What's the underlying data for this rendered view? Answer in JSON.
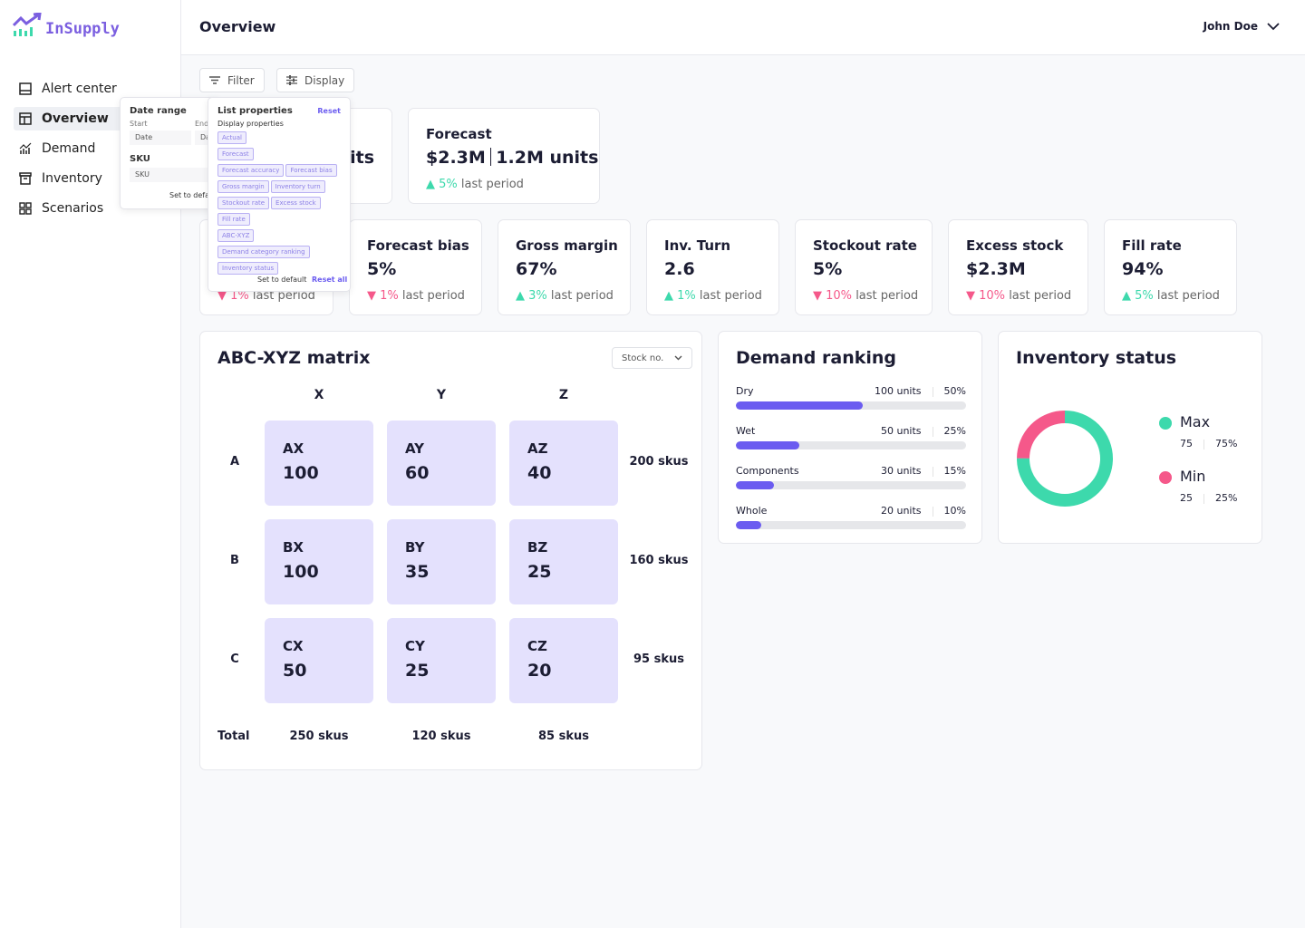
{
  "app": {
    "logo": "InSupply"
  },
  "sidebar": {
    "items": [
      {
        "label": "Alert center",
        "icon": "inbox-icon"
      },
      {
        "label": "Overview",
        "icon": "layout-icon",
        "active": true
      },
      {
        "label": "Demand",
        "icon": "chart-icon"
      },
      {
        "label": "Inventory",
        "icon": "archive-icon"
      },
      {
        "label": "Scenarios",
        "icon": "grid-icon"
      }
    ]
  },
  "header": {
    "title": "Overview",
    "user": "John Doe"
  },
  "toolbar": {
    "filter": "Filter",
    "display": "Display"
  },
  "filter_popup": {
    "title": "Date range",
    "start_label": "Start",
    "end_label": "End",
    "start_placeholder": "Date",
    "end_placeholder": "Da",
    "sku_label": "SKU",
    "sku_placeholder": "SKU",
    "set_default": "Set to defau"
  },
  "display_popup": {
    "title": "List properties",
    "reset": "Reset",
    "subtitle": "Display properties",
    "chips": [
      "Actual",
      "Forecast",
      "Forecast accuracy",
      "Forecast bias",
      "Gross margin",
      "Inventory turn",
      "Stockout rate",
      "Excess stock",
      "Fill rate",
      "ABC-XYZ",
      "Demand category ranking",
      "Inventory  status"
    ],
    "set_default": "Set to default",
    "reset_all": "Reset all"
  },
  "kpi_top": [
    {
      "partial_value": "its"
    },
    {
      "title": "Forecast",
      "value_money": "$2.3M",
      "value_units": "1.2M units",
      "delta": "5%",
      "direction": "up",
      "suffix": "last period"
    }
  ],
  "kpis": [
    {
      "title": "",
      "value": "",
      "delta": "1%",
      "direction": "down",
      "suffix": "last period"
    },
    {
      "title": "Forecast bias",
      "value": "5%",
      "delta": "1%",
      "direction": "down",
      "suffix": "last period"
    },
    {
      "title": "Gross margin",
      "value": "67%",
      "delta": "3%",
      "direction": "up",
      "suffix": "last period"
    },
    {
      "title": "Inv. Turn",
      "value": "2.6",
      "delta": "1%",
      "direction": "up",
      "suffix": "last period"
    },
    {
      "title": "Stockout rate",
      "value": "5%",
      "delta": "10%",
      "direction": "down",
      "suffix": "last period"
    },
    {
      "title": "Excess stock",
      "value": "$2.3M",
      "delta": "10%",
      "direction": "down",
      "suffix": "last period"
    },
    {
      "title": "Fill rate",
      "value": "94%",
      "delta": "5%",
      "direction": "up",
      "suffix": "last period"
    }
  ],
  "matrix": {
    "title": "ABC-XYZ matrix",
    "dropdown": "Stock no.",
    "cols": [
      "X",
      "Y",
      "Z"
    ],
    "rows": [
      "A",
      "B",
      "C"
    ],
    "cells": [
      [
        {
          "code": "AX",
          "value": "100"
        },
        {
          "code": "AY",
          "value": "60"
        },
        {
          "code": "AZ",
          "value": "40"
        }
      ],
      [
        {
          "code": "BX",
          "value": "100"
        },
        {
          "code": "BY",
          "value": "35"
        },
        {
          "code": "BZ",
          "value": "25"
        }
      ],
      [
        {
          "code": "CX",
          "value": "50"
        },
        {
          "code": "CY",
          "value": "25"
        },
        {
          "code": "CZ",
          "value": "20"
        }
      ]
    ],
    "row_totals": [
      "200 skus",
      "160 skus",
      "95 skus"
    ],
    "total_label": "Total",
    "col_totals": [
      "250 skus",
      "120 skus",
      "85 skus"
    ]
  },
  "demand": {
    "title": "Demand ranking",
    "items": [
      {
        "label": "Dry",
        "units": "100 units",
        "pct": "50%",
        "value": 50
      },
      {
        "label": "Wet",
        "units": "50 units",
        "pct": "25%",
        "value": 25
      },
      {
        "label": "Components",
        "units": "30 units",
        "pct": "15%",
        "value": 15
      },
      {
        "label": "Whole",
        "units": "20 units",
        "pct": "10%",
        "value": 10
      }
    ]
  },
  "inventory": {
    "title": "Inventory status",
    "items": [
      {
        "label": "Max",
        "value": "75",
        "pct": "75%",
        "num": 75,
        "color": "#3dd9ac"
      },
      {
        "label": "Min",
        "value": "25",
        "pct": "25%",
        "num": 25,
        "color": "#f5588a"
      }
    ]
  },
  "colors": {
    "accent": "#6b5cf0",
    "up": "#3dd9ac",
    "down": "#f5588a",
    "cell": "#e4e1fd"
  }
}
